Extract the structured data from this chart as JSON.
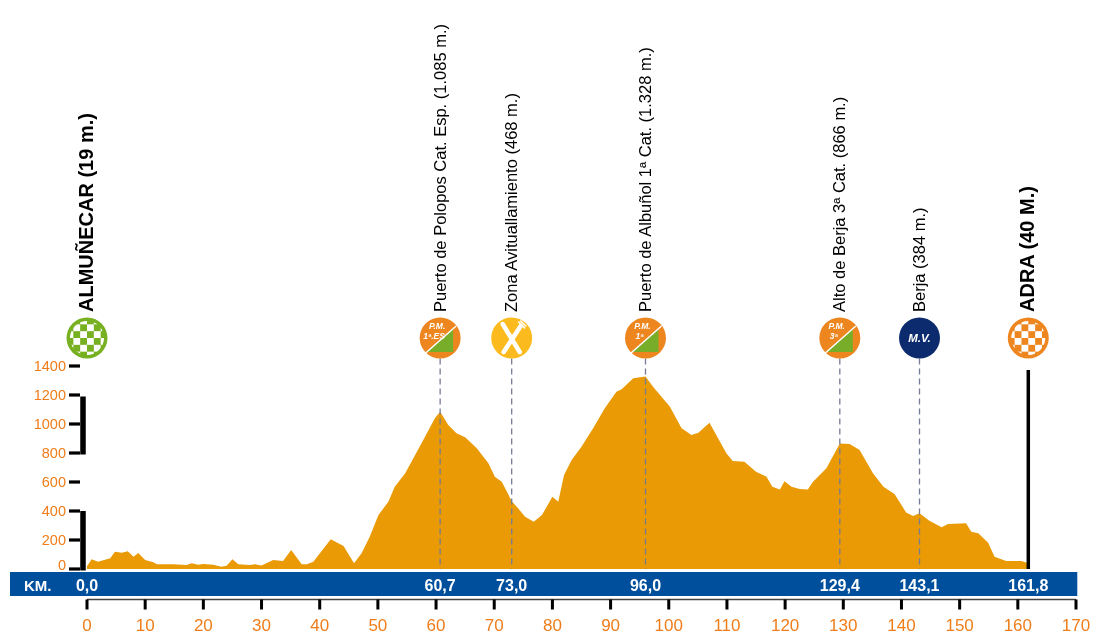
{
  "chart_data": {
    "type": "area",
    "color": "#e99a04",
    "x": [
      0,
      0.8,
      1.9,
      4.0,
      4.8,
      6.0,
      7.0,
      8.0,
      8.8,
      10.0,
      11.4,
      12.0,
      14.8,
      17.1,
      18.0,
      19.1,
      20.0,
      21.7,
      23.1,
      24.0,
      25.0,
      26.0,
      28.0,
      28.9,
      30.0,
      32.0,
      33.7,
      35.1,
      36.9,
      37.8,
      38.9,
      41.9,
      44.1,
      45.9,
      47.2,
      48.6,
      50.1,
      51.8,
      52.9,
      54.7,
      56.1,
      57.8,
      59.8,
      60.7,
      62.1,
      63.5,
      65.0,
      67.0,
      69.0,
      70.1,
      71.3,
      73.0,
      74.1,
      75.3,
      76.8,
      78.2,
      80.0,
      81.0,
      82.0,
      83.3,
      85.0,
      87.0,
      89.0,
      91.0,
      91.9,
      93.9,
      96.0,
      97.3,
      100.2,
      102.2,
      103.9,
      105.1,
      107.0,
      109.9,
      111.0,
      113.0,
      115.0,
      116.8,
      117.8,
      119.1,
      119.9,
      121.1,
      122.5,
      123.9,
      124.8,
      127.1,
      129.4,
      131.1,
      132.8,
      135.1,
      136.9,
      138.8,
      140.8,
      142.0,
      143.1,
      144.8,
      146.9,
      148.0,
      151.1,
      152.0,
      153.2,
      154.9,
      156.0,
      158.0,
      160.6,
      161.8
    ],
    "values": [
      19,
      67,
      50,
      74,
      119,
      112,
      122,
      85,
      110,
      62,
      46,
      32,
      32,
      28,
      39,
      30,
      34,
      30,
      16,
      23,
      67,
      32,
      28,
      32,
      25,
      62,
      55,
      131,
      32,
      32,
      50,
      205,
      159,
      39,
      108,
      223,
      372,
      464,
      568,
      660,
      763,
      890,
      1039,
      1085,
      993,
      936,
      908,
      832,
      729,
      637,
      602,
      468,
      419,
      361,
      326,
      372,
      499,
      464,
      648,
      752,
      843,
      970,
      1108,
      1223,
      1239,
      1315,
      1328,
      1257,
      1119,
      970,
      924,
      940,
      1009,
      798,
      745,
      740,
      671,
      637,
      568,
      549,
      606,
      568,
      551,
      549,
      602,
      694,
      866,
      862,
      821,
      660,
      568,
      517,
      390,
      365,
      384,
      333,
      288,
      310,
      315,
      257,
      246,
      181,
      85,
      55,
      55,
      40
    ],
    "xlim": [
      0,
      170
    ],
    "xticks": [
      0,
      10,
      20,
      30,
      40,
      50,
      60,
      70,
      80,
      90,
      100,
      110,
      120,
      130,
      140,
      150,
      160,
      170
    ],
    "ylim": [
      0,
      1400
    ],
    "yticks": [
      0,
      200,
      400,
      600,
      800,
      1000,
      1200,
      1400
    ],
    "x2label": "KM.",
    "x2lim": [
      0,
      161.8
    ],
    "x2ticks": [
      {
        "value": 0,
        "label": "0,0"
      },
      {
        "value": 60.7,
        "label": "60,7"
      },
      {
        "value": 73.0,
        "label": "73,0"
      },
      {
        "value": 96.0,
        "label": "96,0"
      },
      {
        "value": 129.4,
        "label": "129,4"
      },
      {
        "value": 143.1,
        "label": "143,1"
      },
      {
        "value": 161.8,
        "label": "161,8"
      }
    ],
    "ref_lines": [
      {
        "axis": "x",
        "value": 60.7,
        "label": "Puerto de Polopos Cat. Esp. (1.085 m.)",
        "color": "#767b96",
        "line_style": "dashed"
      },
      {
        "axis": "x",
        "value": 73.0,
        "label": "Zona Avituallamiento (468 m.)",
        "color": "#767b96",
        "line_style": "dashed"
      },
      {
        "axis": "x",
        "value": 96.0,
        "label": "Puerto de Albuñol 1ª Cat. (1.328 m.)",
        "color": "#767b96",
        "line_style": "dashed"
      },
      {
        "axis": "x",
        "value": 129.4,
        "label": "Alto de Berja 3ª Cat. (866 m.)",
        "color": "#767b96",
        "line_style": "dashed"
      },
      {
        "axis": "x",
        "value": 143.1,
        "label": "Berja (384 m.)",
        "color": "#767b96",
        "line_style": "dashed"
      },
      {
        "axis": "x",
        "value": 161.8,
        "label": "ADRA (40 M.)",
        "color": "#000000",
        "line_style": "solid"
      }
    ],
    "annotations": [
      "ALMUÑECAR (19 m.)",
      "P.M.",
      "1ª.ES",
      "P.M.",
      "1ª",
      "P.M.",
      "3ª",
      "M.V."
    ]
  }
}
